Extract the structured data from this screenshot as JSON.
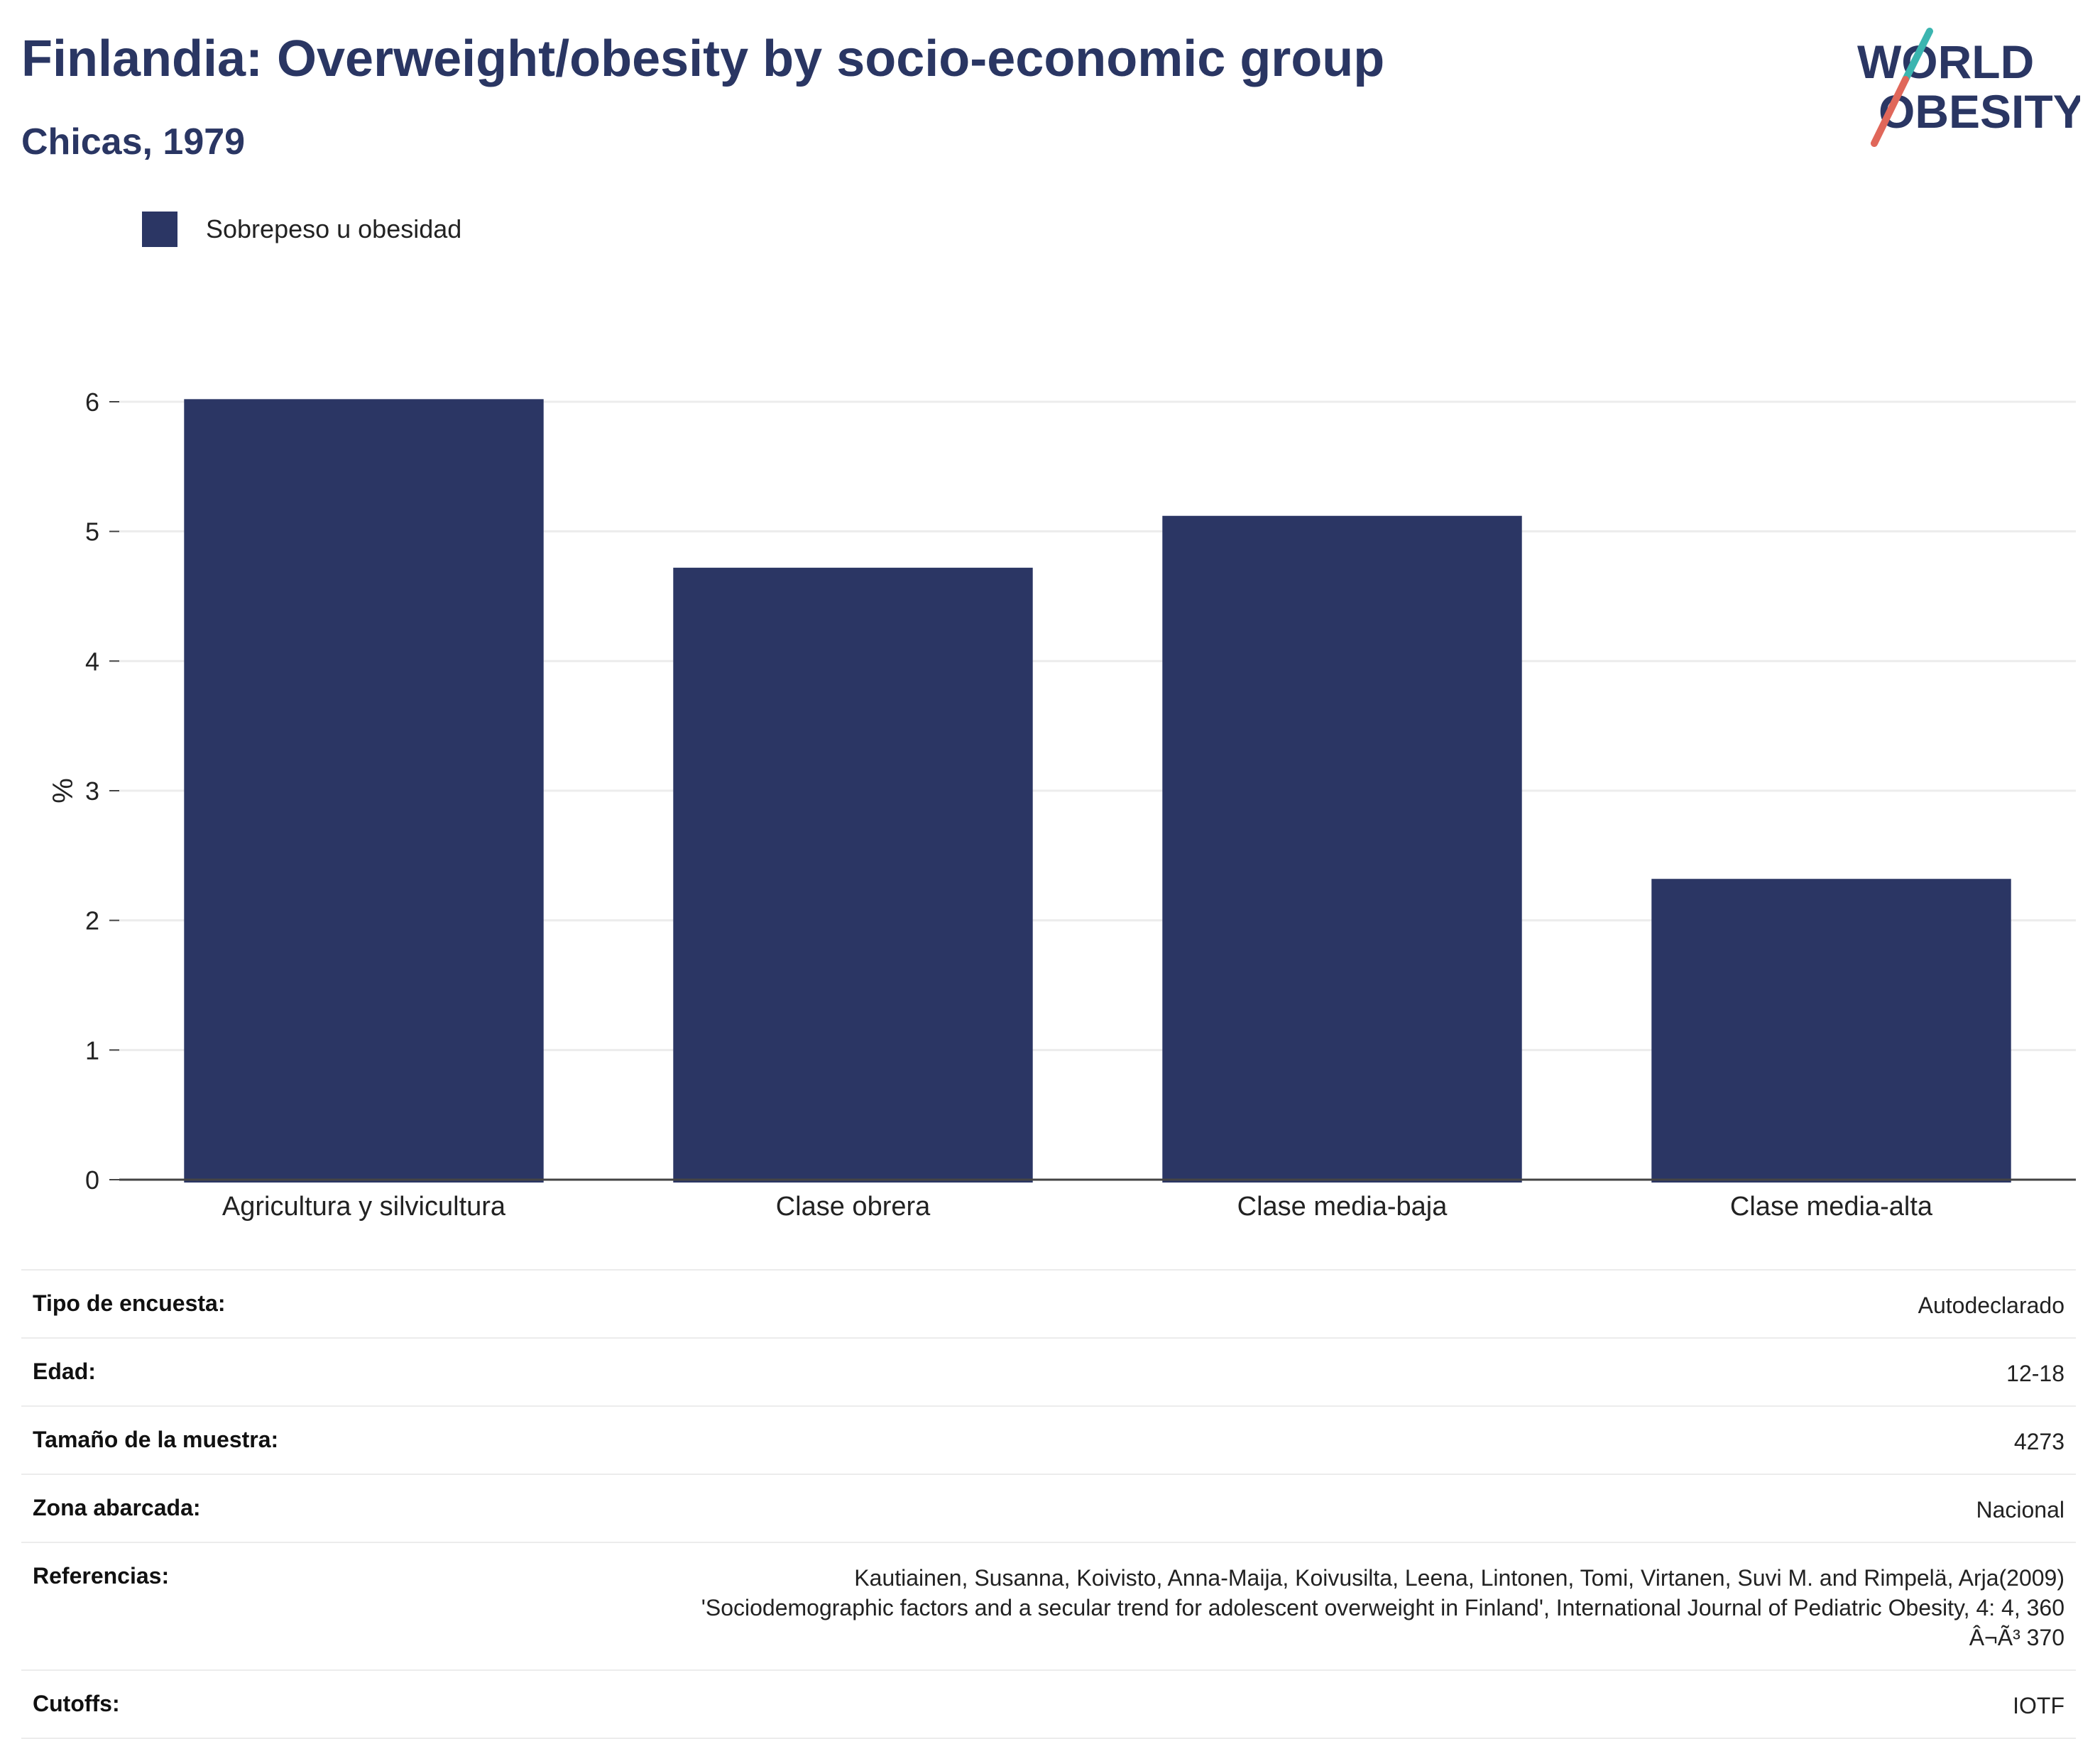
{
  "header": {
    "title": "Finlandia: Overweight/obesity by socio-economic group",
    "subtitle": "Chicas, 1979"
  },
  "logo": {
    "line1": "WORLD",
    "line2": "OBESITY",
    "colors": {
      "teal": "#3bb5b0",
      "coral": "#e0675a",
      "navy": "#2a3663"
    }
  },
  "legend": {
    "label": "Sobrepeso u obesidad",
    "color": "#2b3664"
  },
  "chart_data": {
    "type": "bar",
    "categories": [
      "Agricultura y silvicultura",
      "Clase obrera",
      "Clase media-baja",
      "Clase media-alta"
    ],
    "series": [
      {
        "name": "Sobrepeso u obesidad",
        "values": [
          6.02,
          4.72,
          5.12,
          2.32
        ],
        "color": "#2b3664"
      }
    ],
    "ylabel": "%",
    "ylim": [
      0,
      6
    ],
    "yticks": [
      0,
      1,
      2,
      3,
      4,
      5,
      6
    ],
    "grid": true,
    "legend_position": "top-left"
  },
  "meta": {
    "survey_type": {
      "label": "Tipo de encuesta:",
      "value": "Autodeclarado"
    },
    "age": {
      "label": "Edad:",
      "value": "12-18"
    },
    "sample_size": {
      "label": "Tamaño de la muestra:",
      "value": "4273"
    },
    "area": {
      "label": "Zona abarcada:",
      "value": "Nacional"
    },
    "references": {
      "label": "Referencias:",
      "line1": "Kautiainen, Susanna, Koivisto, Anna-Maija, Koivusilta, Leena, Lintonen, Tomi, Virtanen, Suvi M. and Rimpelä, Arja(2009)",
      "line2": "'Sociodemographic factors and a secular trend for adolescent overweight in Finland', International Journal of Pediatric Obesity, 4: 4, 360",
      "line3": "Â¬Ã³ 370"
    },
    "cutoffs": {
      "label": "Cutoffs:",
      "value": "IOTF"
    }
  }
}
